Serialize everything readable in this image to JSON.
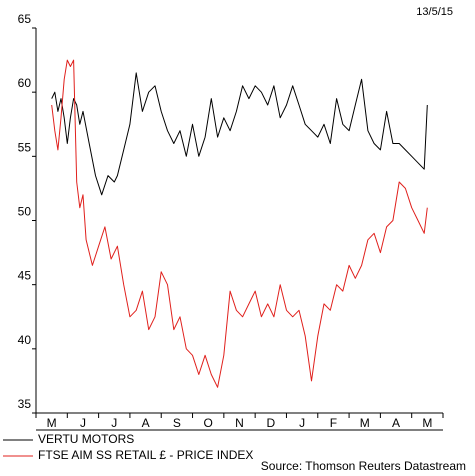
{
  "date_stamp": "13/5/15",
  "source": "Source: Thomson Reuters Datastream",
  "chart_data": {
    "type": "line",
    "ylim": [
      35,
      65
    ],
    "yticks": [
      35,
      40,
      45,
      50,
      55,
      60,
      65
    ],
    "month_labels": [
      "M",
      "J",
      "J",
      "A",
      "S",
      "O",
      "N",
      "D",
      "J",
      "F",
      "M",
      "A",
      "M"
    ],
    "grid": false,
    "series": [
      {
        "name": "VERTU MOTORS",
        "color": "#000000",
        "x": [
          0,
          0.1,
          0.2,
          0.3,
          0.4,
          0.5,
          0.6,
          0.7,
          0.8,
          0.9,
          1.0,
          1.2,
          1.4,
          1.6,
          1.8,
          2.0,
          2.1,
          2.3,
          2.5,
          2.7,
          2.9,
          3.1,
          3.3,
          3.5,
          3.7,
          3.9,
          4.1,
          4.3,
          4.5,
          4.7,
          4.9,
          5.1,
          5.3,
          5.5,
          5.7,
          5.9,
          6.1,
          6.3,
          6.5,
          6.7,
          6.9,
          7.1,
          7.3,
          7.5,
          7.7,
          7.9,
          8.1,
          8.3,
          8.5,
          8.7,
          8.9,
          9.1,
          9.3,
          9.5,
          9.7,
          9.9,
          10.1,
          10.3,
          10.5,
          10.7,
          10.9,
          11.1,
          11.3,
          11.5,
          11.7,
          11.9,
          12.0
        ],
        "values": [
          59.5,
          60.0,
          58.5,
          59.5,
          58.0,
          56.0,
          58.0,
          59.5,
          59.0,
          57.5,
          58.5,
          56.0,
          53.5,
          52.0,
          53.5,
          53.0,
          53.5,
          55.5,
          57.5,
          61.5,
          58.5,
          60.0,
          60.5,
          58.5,
          57.0,
          56.0,
          57.0,
          55.0,
          57.5,
          55.0,
          56.5,
          59.5,
          56.5,
          58.0,
          57.0,
          58.5,
          60.5,
          59.5,
          60.5,
          60.0,
          59.0,
          60.5,
          58.0,
          59.0,
          60.5,
          59.0,
          57.5,
          57.0,
          56.5,
          57.5,
          56.0,
          59.5,
          57.5,
          57.0,
          59.0,
          61.0,
          57.0,
          56.0,
          55.5,
          58.5,
          56.0,
          56.0,
          55.5,
          55.0,
          54.5,
          54.0,
          59.0
        ]
      },
      {
        "name": "FTSE AIM SS RETAIL £ - PRICE INDEX",
        "color": "#e0201c",
        "x": [
          0,
          0.1,
          0.2,
          0.3,
          0.4,
          0.5,
          0.6,
          0.7,
          0.8,
          0.9,
          1.0,
          1.1,
          1.3,
          1.5,
          1.7,
          1.9,
          2.1,
          2.3,
          2.5,
          2.7,
          2.9,
          3.1,
          3.3,
          3.5,
          3.7,
          3.9,
          4.1,
          4.3,
          4.5,
          4.7,
          4.9,
          5.1,
          5.3,
          5.5,
          5.7,
          5.9,
          6.1,
          6.3,
          6.5,
          6.7,
          6.9,
          7.1,
          7.3,
          7.5,
          7.7,
          7.9,
          8.1,
          8.3,
          8.5,
          8.7,
          8.9,
          9.1,
          9.3,
          9.5,
          9.7,
          9.9,
          10.1,
          10.3,
          10.5,
          10.7,
          10.9,
          11.1,
          11.3,
          11.5,
          11.7,
          11.9,
          12.0
        ],
        "values": [
          59.0,
          57.0,
          55.5,
          58.0,
          61.0,
          62.5,
          62.0,
          62.5,
          53.0,
          51.0,
          52.0,
          48.5,
          46.5,
          48.0,
          49.5,
          47.0,
          48.0,
          45.0,
          42.5,
          43.0,
          44.5,
          41.5,
          42.5,
          46.0,
          45.0,
          41.5,
          42.5,
          40.0,
          39.5,
          38.0,
          39.5,
          38.0,
          37.0,
          39.5,
          44.5,
          43.0,
          42.5,
          43.5,
          44.5,
          42.5,
          43.5,
          42.5,
          45.0,
          43.0,
          42.5,
          43.0,
          41.0,
          37.5,
          41.0,
          43.5,
          43.0,
          45.0,
          44.5,
          46.5,
          45.5,
          46.5,
          48.5,
          49.0,
          47.5,
          49.5,
          50.0,
          53.0,
          52.5,
          51.0,
          50.0,
          49.0,
          51.0
        ]
      }
    ]
  }
}
